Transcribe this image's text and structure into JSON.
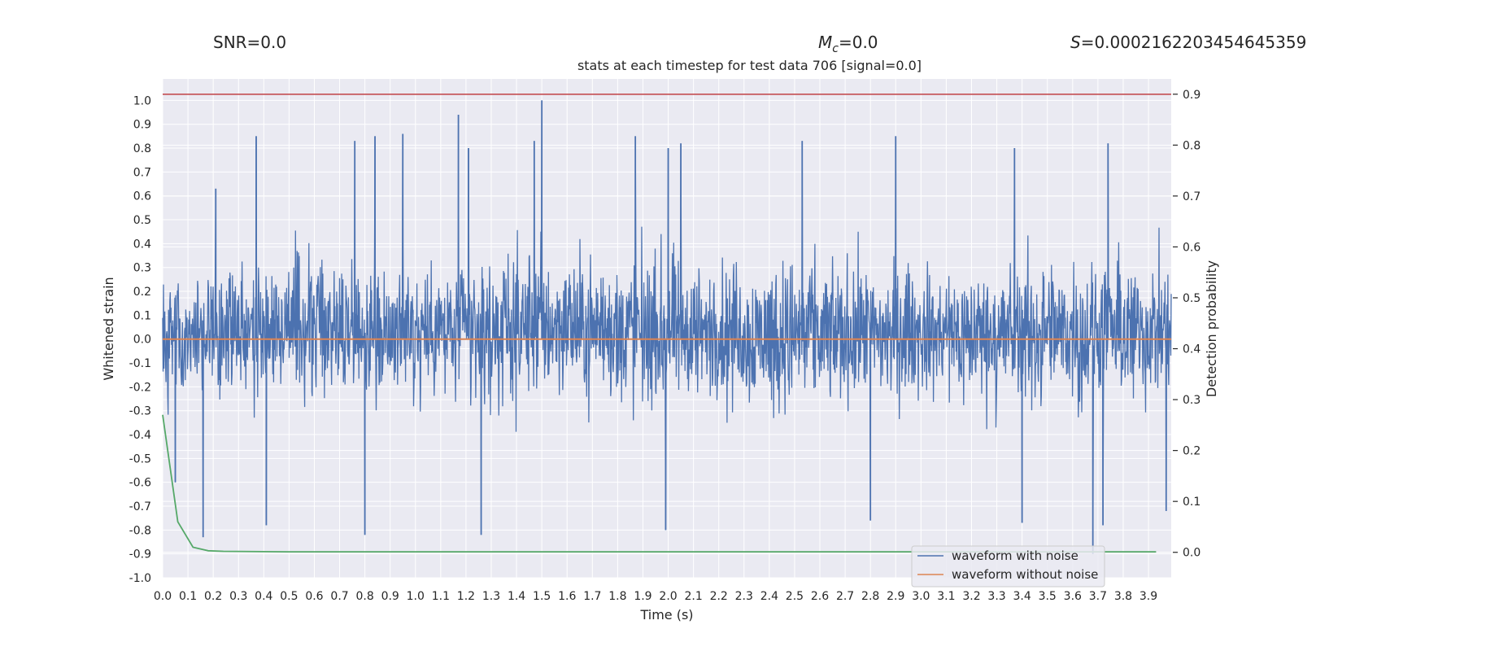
{
  "header": {
    "snr": "SNR=0.0",
    "mc_symbol": "M",
    "mc_subscript": "c",
    "mc_value": "=0.0",
    "s_symbol": "S",
    "s_value": "=0.0002162203454645359"
  },
  "colors": {
    "background": "#eaeaf2",
    "grid": "#ffffff",
    "waveform_with_noise": "#4c72b0",
    "waveform_without_noise": "#dd8452",
    "detection_probability": "#55a868",
    "threshold": "#c44e52"
  },
  "chart_data": {
    "type": "line",
    "title": "stats at each timestep for test data 706 [signal=0.0]",
    "xlabel": "Time (s)",
    "ylabel": "Whitened strain",
    "y2label": "Detection probability",
    "xlim": [
      0.0,
      3.99
    ],
    "ylim": [
      -1.0,
      1.09
    ],
    "y2lim": [
      -0.05,
      0.93
    ],
    "x_ticks": [
      "0.0",
      "0.1",
      "0.2",
      "0.3",
      "0.4",
      "0.5",
      "0.6",
      "0.7",
      "0.8",
      "0.9",
      "1.0",
      "1.1",
      "1.2",
      "1.3",
      "1.4",
      "1.5",
      "1.6",
      "1.7",
      "1.8",
      "1.9",
      "2.0",
      "2.1",
      "2.2",
      "2.3",
      "2.4",
      "2.5",
      "2.6",
      "2.7",
      "2.8",
      "2.9",
      "3.0",
      "3.1",
      "3.2",
      "3.3",
      "3.4",
      "3.5",
      "3.6",
      "3.7",
      "3.8",
      "3.9"
    ],
    "y_ticks": [
      "-1.0",
      "-0.9",
      "-0.8",
      "-0.7",
      "-0.6",
      "-0.5",
      "-0.4",
      "-0.3",
      "-0.2",
      "-0.1",
      "0.0",
      "0.1",
      "0.2",
      "0.3",
      "0.4",
      "0.5",
      "0.6",
      "0.7",
      "0.8",
      "0.9",
      "1.0"
    ],
    "y2_ticks": [
      "0.0",
      "0.1",
      "0.2",
      "0.3",
      "0.4",
      "0.5",
      "0.6",
      "0.7",
      "0.8",
      "0.9"
    ],
    "legend": {
      "position": "lower-right",
      "entries": [
        "waveform with noise",
        "waveform without noise"
      ]
    },
    "series": [
      {
        "name": "waveform with noise",
        "axis": "left",
        "style": "dense noise",
        "envelope": {
          "x": [
            0.0,
            0.4,
            0.8,
            1.2,
            1.5,
            2.0,
            2.5,
            3.0,
            3.5,
            3.99
          ],
          "upper": [
            0.42,
            0.6,
            0.55,
            0.55,
            0.6,
            0.55,
            0.55,
            0.5,
            0.55,
            0.55
          ],
          "lower": [
            -0.42,
            -0.5,
            -0.5,
            -0.55,
            -0.5,
            -0.55,
            -0.55,
            -0.5,
            -0.55,
            -0.55
          ]
        },
        "spikes": [
          {
            "x": 0.05,
            "y": -0.6
          },
          {
            "x": 0.16,
            "y": -0.83
          },
          {
            "x": 0.21,
            "y": 0.63
          },
          {
            "x": 0.37,
            "y": 0.85
          },
          {
            "x": 0.41,
            "y": -0.78
          },
          {
            "x": 0.76,
            "y": 0.83
          },
          {
            "x": 0.8,
            "y": -0.82
          },
          {
            "x": 0.84,
            "y": 0.85
          },
          {
            "x": 0.95,
            "y": 0.86
          },
          {
            "x": 1.17,
            "y": 0.94
          },
          {
            "x": 1.21,
            "y": 0.8
          },
          {
            "x": 1.26,
            "y": -0.82
          },
          {
            "x": 1.47,
            "y": 0.83
          },
          {
            "x": 1.5,
            "y": 1.0
          },
          {
            "x": 1.87,
            "y": 0.85
          },
          {
            "x": 1.99,
            "y": -0.8
          },
          {
            "x": 2.0,
            "y": 0.8
          },
          {
            "x": 2.05,
            "y": 0.82
          },
          {
            "x": 2.53,
            "y": 0.83
          },
          {
            "x": 2.8,
            "y": -0.76
          },
          {
            "x": 2.9,
            "y": 0.85
          },
          {
            "x": 3.37,
            "y": 0.8
          },
          {
            "x": 3.4,
            "y": -0.77
          },
          {
            "x": 3.68,
            "y": -0.9
          },
          {
            "x": 3.72,
            "y": -0.78
          },
          {
            "x": 3.74,
            "y": 0.82
          },
          {
            "x": 3.97,
            "y": -0.72
          }
        ]
      },
      {
        "name": "waveform without noise",
        "axis": "left",
        "x": [
          0.0,
          3.99
        ],
        "y": [
          0.0,
          0.0
        ]
      },
      {
        "name": "detection probability",
        "axis": "right",
        "x": [
          0.0,
          0.06,
          0.12,
          0.18,
          0.24,
          0.5,
          1.0,
          2.0,
          3.0,
          3.93
        ],
        "y": [
          0.27,
          0.06,
          0.01,
          0.003,
          0.002,
          0.001,
          0.001,
          0.001,
          0.001,
          0.001
        ]
      },
      {
        "name": "threshold",
        "axis": "right",
        "x": [
          0.0,
          3.99
        ],
        "y": [
          0.9,
          0.9
        ]
      }
    ]
  }
}
